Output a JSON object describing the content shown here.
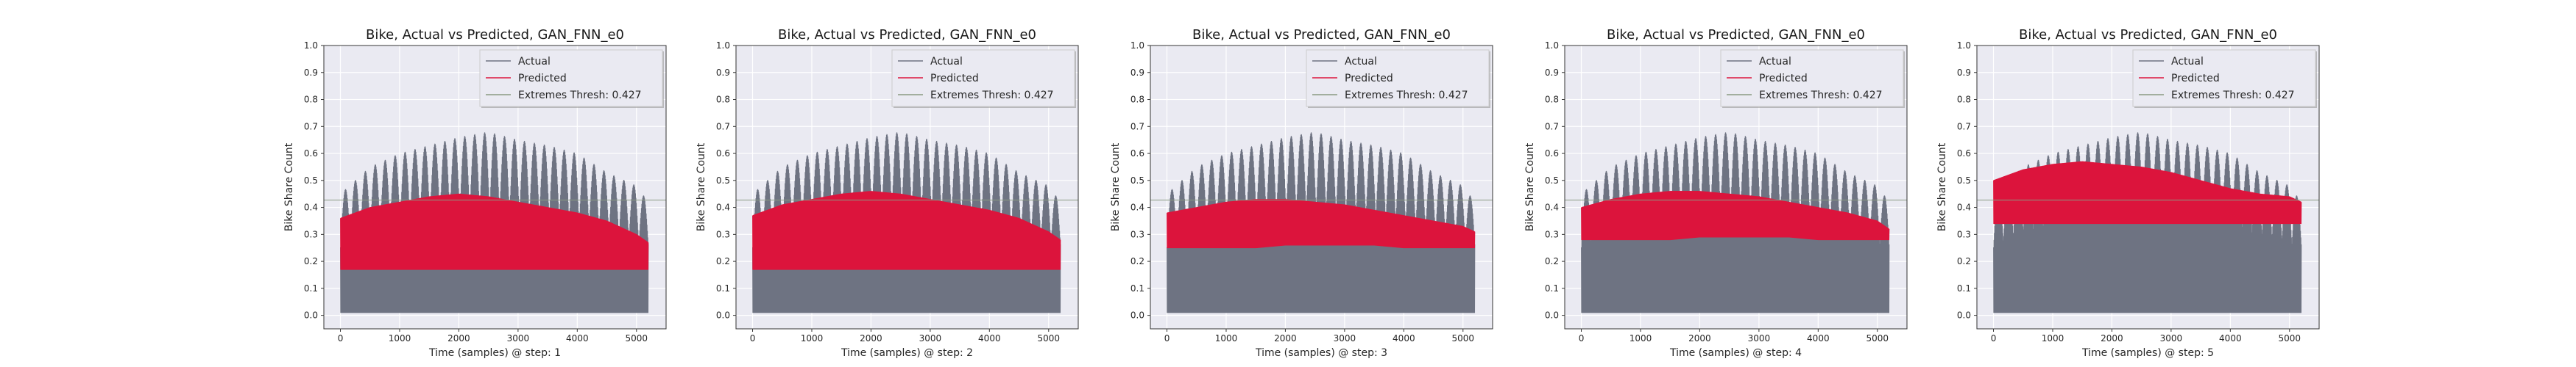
{
  "colors": {
    "actual": "#6e7382",
    "predicted": "#dc143c",
    "threshold": "#8a9a82",
    "plot_bg": "#eaeaf2",
    "grid": "#ffffff",
    "frame": "#333333"
  },
  "chart_data": [
    {
      "type": "line",
      "title": "Bike, Actual vs Predicted, GAN_FNN_e0",
      "xlabel": "Time (samples) @ step: 1",
      "ylabel": "Bike Share Count",
      "xlim": [
        -280,
        5500
      ],
      "ylim": [
        -0.05,
        1.0
      ],
      "xticks": [
        0,
        1000,
        2000,
        3000,
        4000,
        5000
      ],
      "yticks": [
        0.0,
        0.1,
        0.2,
        0.3,
        0.4,
        0.5,
        0.6,
        0.7,
        0.8,
        0.9,
        1.0
      ],
      "grid": true,
      "legend_position": "upper right",
      "threshold": 0.427,
      "series": [
        {
          "name": "Actual",
          "x": [
            0,
            500,
            1000,
            1500,
            2000,
            2500,
            3000,
            3500,
            4000,
            4500,
            5000,
            5200
          ],
          "y_low": [
            0.01,
            0.01,
            0.01,
            0.01,
            0.01,
            0.01,
            0.01,
            0.01,
            0.01,
            0.01,
            0.01,
            0.01
          ],
          "y_high": [
            0.45,
            0.55,
            0.6,
            0.63,
            0.66,
            0.68,
            0.65,
            0.63,
            0.6,
            0.53,
            0.48,
            0.42
          ]
        },
        {
          "name": "Predicted",
          "x": [
            0,
            500,
            1000,
            1500,
            2000,
            2500,
            3000,
            3500,
            4000,
            4500,
            5000,
            5200
          ],
          "y_low": [
            0.17,
            0.17,
            0.17,
            0.17,
            0.17,
            0.17,
            0.17,
            0.17,
            0.17,
            0.17,
            0.17,
            0.17
          ],
          "y_high": [
            0.36,
            0.4,
            0.42,
            0.44,
            0.45,
            0.44,
            0.42,
            0.4,
            0.38,
            0.35,
            0.3,
            0.27
          ]
        },
        {
          "name": "Extremes Thresh: 0.427",
          "value": 0.427
        }
      ]
    },
    {
      "type": "line",
      "title": "Bike, Actual vs Predicted, GAN_FNN_e0",
      "xlabel": "Time (samples) @ step: 2",
      "ylabel": "Bike Share Count",
      "xlim": [
        -280,
        5500
      ],
      "ylim": [
        -0.05,
        1.0
      ],
      "xticks": [
        0,
        1000,
        2000,
        3000,
        4000,
        5000
      ],
      "yticks": [
        0.0,
        0.1,
        0.2,
        0.3,
        0.4,
        0.5,
        0.6,
        0.7,
        0.8,
        0.9,
        1.0
      ],
      "grid": true,
      "legend_position": "upper right",
      "threshold": 0.427,
      "series": [
        {
          "name": "Actual",
          "x": [
            0,
            500,
            1000,
            1500,
            2000,
            2500,
            3000,
            3500,
            4000,
            4500,
            5000,
            5200
          ],
          "y_low": [
            0.01,
            0.01,
            0.01,
            0.01,
            0.01,
            0.01,
            0.01,
            0.01,
            0.01,
            0.01,
            0.01,
            0.01
          ],
          "y_high": [
            0.45,
            0.55,
            0.6,
            0.63,
            0.66,
            0.68,
            0.65,
            0.63,
            0.6,
            0.53,
            0.48,
            0.42
          ]
        },
        {
          "name": "Predicted",
          "x": [
            0,
            500,
            1000,
            1500,
            2000,
            2500,
            3000,
            3500,
            4000,
            4500,
            5000,
            5200
          ],
          "y_low": [
            0.17,
            0.17,
            0.17,
            0.17,
            0.17,
            0.17,
            0.17,
            0.17,
            0.17,
            0.17,
            0.17,
            0.17
          ],
          "y_high": [
            0.37,
            0.41,
            0.43,
            0.45,
            0.46,
            0.45,
            0.43,
            0.41,
            0.39,
            0.36,
            0.31,
            0.28
          ]
        },
        {
          "name": "Extremes Thresh: 0.427",
          "value": 0.427
        }
      ]
    },
    {
      "type": "line",
      "title": "Bike, Actual vs Predicted, GAN_FNN_e0",
      "xlabel": "Time (samples) @ step: 3",
      "ylabel": "Bike Share Count",
      "xlim": [
        -280,
        5500
      ],
      "ylim": [
        -0.05,
        1.0
      ],
      "xticks": [
        0,
        1000,
        2000,
        3000,
        4000,
        5000
      ],
      "yticks": [
        0.0,
        0.1,
        0.2,
        0.3,
        0.4,
        0.5,
        0.6,
        0.7,
        0.8,
        0.9,
        1.0
      ],
      "grid": true,
      "legend_position": "upper right",
      "threshold": 0.427,
      "series": [
        {
          "name": "Actual",
          "x": [
            0,
            500,
            1000,
            1500,
            2000,
            2500,
            3000,
            3500,
            4000,
            4500,
            5000,
            5200
          ],
          "y_low": [
            0.01,
            0.01,
            0.01,
            0.01,
            0.01,
            0.01,
            0.01,
            0.01,
            0.01,
            0.01,
            0.01,
            0.01
          ],
          "y_high": [
            0.45,
            0.55,
            0.6,
            0.63,
            0.66,
            0.68,
            0.65,
            0.63,
            0.6,
            0.53,
            0.48,
            0.42
          ]
        },
        {
          "name": "Predicted",
          "x": [
            0,
            500,
            1000,
            1500,
            2000,
            2500,
            3000,
            3500,
            4000,
            4500,
            5000,
            5200
          ],
          "y_low": [
            0.25,
            0.25,
            0.25,
            0.25,
            0.26,
            0.26,
            0.26,
            0.26,
            0.25,
            0.25,
            0.25,
            0.25
          ],
          "y_high": [
            0.38,
            0.4,
            0.42,
            0.43,
            0.43,
            0.42,
            0.41,
            0.39,
            0.37,
            0.35,
            0.33,
            0.31
          ]
        },
        {
          "name": "Extremes Thresh: 0.427",
          "value": 0.427
        }
      ]
    },
    {
      "type": "line",
      "title": "Bike, Actual vs Predicted, GAN_FNN_e0",
      "xlabel": "Time (samples) @ step: 4",
      "ylabel": "Bike Share Count",
      "xlim": [
        -280,
        5500
      ],
      "ylim": [
        -0.05,
        1.0
      ],
      "xticks": [
        0,
        1000,
        2000,
        3000,
        4000,
        5000
      ],
      "yticks": [
        0.0,
        0.1,
        0.2,
        0.3,
        0.4,
        0.5,
        0.6,
        0.7,
        0.8,
        0.9,
        1.0
      ],
      "grid": true,
      "legend_position": "upper right",
      "threshold": 0.427,
      "series": [
        {
          "name": "Actual",
          "x": [
            0,
            500,
            1000,
            1500,
            2000,
            2500,
            3000,
            3500,
            4000,
            4500,
            5000,
            5200
          ],
          "y_low": [
            0.01,
            0.01,
            0.01,
            0.01,
            0.01,
            0.01,
            0.01,
            0.01,
            0.01,
            0.01,
            0.01,
            0.01
          ],
          "y_high": [
            0.45,
            0.55,
            0.6,
            0.63,
            0.66,
            0.68,
            0.65,
            0.63,
            0.6,
            0.53,
            0.48,
            0.42
          ]
        },
        {
          "name": "Predicted",
          "x": [
            0,
            500,
            1000,
            1500,
            2000,
            2500,
            3000,
            3500,
            4000,
            4500,
            5000,
            5200
          ],
          "y_low": [
            0.28,
            0.28,
            0.28,
            0.28,
            0.29,
            0.29,
            0.29,
            0.29,
            0.28,
            0.28,
            0.28,
            0.28
          ],
          "y_high": [
            0.4,
            0.43,
            0.45,
            0.46,
            0.46,
            0.45,
            0.44,
            0.42,
            0.4,
            0.38,
            0.35,
            0.32
          ]
        },
        {
          "name": "Extremes Thresh: 0.427",
          "value": 0.427
        }
      ]
    },
    {
      "type": "line",
      "title": "Bike, Actual vs Predicted, GAN_FNN_e0",
      "xlabel": "Time (samples) @ step: 5",
      "ylabel": "Bike Share Count",
      "xlim": [
        -280,
        5500
      ],
      "ylim": [
        -0.05,
        1.0
      ],
      "xticks": [
        0,
        1000,
        2000,
        3000,
        4000,
        5000
      ],
      "yticks": [
        0.0,
        0.1,
        0.2,
        0.3,
        0.4,
        0.5,
        0.6,
        0.7,
        0.8,
        0.9,
        1.0
      ],
      "grid": true,
      "legend_position": "upper right",
      "threshold": 0.427,
      "series": [
        {
          "name": "Actual",
          "x": [
            0,
            500,
            1000,
            1500,
            2000,
            2500,
            3000,
            3500,
            4000,
            4500,
            5000,
            5200
          ],
          "y_low": [
            0.01,
            0.01,
            0.01,
            0.01,
            0.01,
            0.01,
            0.01,
            0.01,
            0.01,
            0.01,
            0.01,
            0.01
          ],
          "y_high": [
            0.45,
            0.55,
            0.6,
            0.63,
            0.66,
            0.68,
            0.65,
            0.63,
            0.6,
            0.53,
            0.48,
            0.42
          ]
        },
        {
          "name": "Predicted",
          "x": [
            0,
            500,
            1000,
            1500,
            2000,
            2500,
            3000,
            3500,
            4000,
            4500,
            5000,
            5200
          ],
          "y_low": [
            0.34,
            0.34,
            0.34,
            0.34,
            0.34,
            0.34,
            0.34,
            0.34,
            0.34,
            0.34,
            0.34,
            0.34
          ],
          "y_high": [
            0.5,
            0.54,
            0.56,
            0.57,
            0.56,
            0.55,
            0.53,
            0.5,
            0.47,
            0.45,
            0.44,
            0.42
          ]
        },
        {
          "name": "Extremes Thresh: 0.427",
          "value": 0.427
        }
      ]
    }
  ]
}
